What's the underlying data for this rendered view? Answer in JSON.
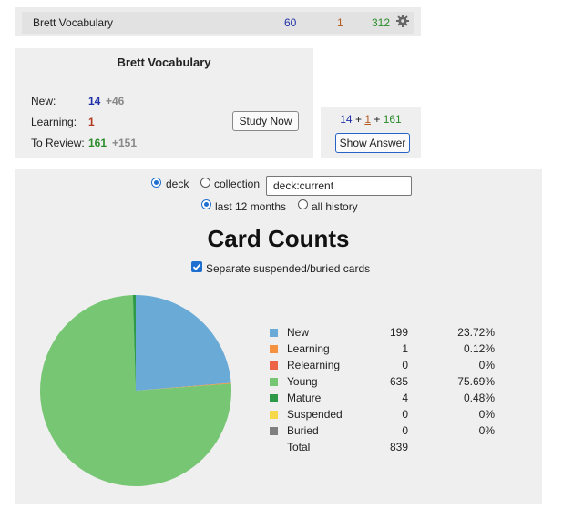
{
  "deck_list": {
    "name": "Brett Vocabulary",
    "new": "60",
    "learning": "1",
    "review": "312"
  },
  "overview": {
    "title": "Brett Vocabulary",
    "rows": [
      {
        "label": "New:",
        "value": "14",
        "extra": "+46",
        "color": "#1f2fa8"
      },
      {
        "label": "Learning:",
        "value": "1",
        "extra": "",
        "color": "#b23a20"
      },
      {
        "label": "To Review:",
        "value": "161",
        "extra": "+151",
        "color": "#2b8c2b"
      }
    ],
    "study_button": "Study Now"
  },
  "answer": {
    "new": "14",
    "learning": "1",
    "review": "161",
    "plus": "+",
    "button": "Show Answer"
  },
  "stats": {
    "scope_deck": "deck",
    "scope_collection": "collection",
    "search_value": "deck:current",
    "range_year": "last 12 months",
    "range_all": "all history",
    "selected_scope": "deck",
    "selected_range": "last 12 months",
    "title": "Card Counts",
    "separate_label": "Separate suspended/buried cards",
    "separate_checked": true
  },
  "chart_data": {
    "type": "pie",
    "title": "Card Counts",
    "slices": [
      {
        "name": "New",
        "count": 199,
        "pct": "23.72%",
        "color": "#6aaad6"
      },
      {
        "name": "Learning",
        "count": 1,
        "pct": "0.12%",
        "color": "#f59240"
      },
      {
        "name": "Relearning",
        "count": 0,
        "pct": "0%",
        "color": "#ec6346"
      },
      {
        "name": "Young",
        "count": 635,
        "pct": "75.69%",
        "color": "#76c673"
      },
      {
        "name": "Mature",
        "count": 4,
        "pct": "0.48%",
        "color": "#2d9a4a"
      },
      {
        "name": "Suspended",
        "count": 0,
        "pct": "0%",
        "color": "#f7d84a"
      },
      {
        "name": "Buried",
        "count": 0,
        "pct": "0%",
        "color": "#7f7f7f"
      }
    ],
    "total_label": "Total",
    "total": 839
  }
}
